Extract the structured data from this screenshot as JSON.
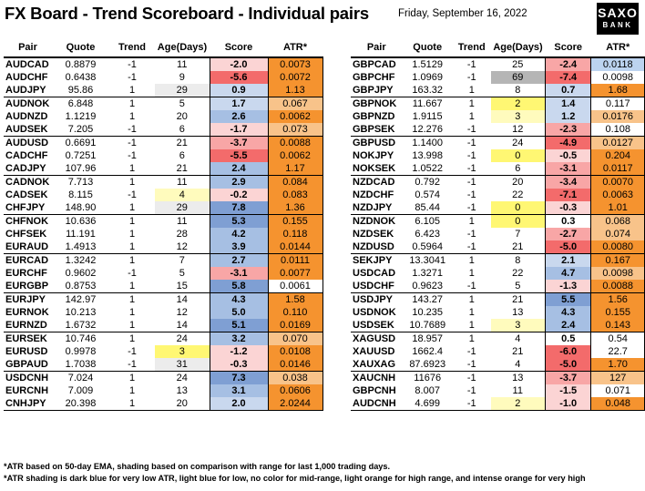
{
  "header": {
    "title": "FX Board - Trend Scoreboard - Individual pairs",
    "date": "Friday, September 16, 2022",
    "logo_line1": "SAXO",
    "logo_line2": "BANK"
  },
  "columns": [
    "Pair",
    "Quote",
    "Trend",
    "Age(Days)",
    "Score",
    "ATR*"
  ],
  "colors": {
    "score_strong_neg": "#f36b6b",
    "score_neg": "#f8a6a6",
    "score_light_neg": "#fbd4d4",
    "score_light_pos": "#c9d8ee",
    "score_pos": "#a6bfe3",
    "score_strong_pos": "#7f9fd3",
    "atr_intense_orange": "#f5932f",
    "atr_light_orange": "#f8c38a",
    "atr_light_blue": "#bcd3ef",
    "atr_dark_blue": "#5b8fd6",
    "age_yellow": "#fff773",
    "age_light_yellow": "#fffbbd",
    "age_grey": "#b5b5b5",
    "age_light_grey": "#ececec"
  },
  "left_table": [
    {
      "pair": "AUDCAD",
      "quote": "0.8879",
      "trend": "-1",
      "age": "11",
      "age_shade": "",
      "score": "-2.0",
      "score_shade": "light_neg",
      "atr": "0.0073",
      "atr_shade": "intense_orange"
    },
    {
      "pair": "AUDCHF",
      "quote": "0.6438",
      "trend": "-1",
      "age": "9",
      "age_shade": "",
      "score": "-5.6",
      "score_shade": "strong_neg",
      "atr": "0.0072",
      "atr_shade": "intense_orange"
    },
    {
      "pair": "AUDJPY",
      "quote": "95.86",
      "trend": "1",
      "age": "29",
      "age_shade": "light_grey",
      "score": "0.9",
      "score_shade": "light_pos",
      "atr": "1.13",
      "atr_shade": "intense_orange"
    },
    {
      "pair": "AUDNOK",
      "quote": "6.848",
      "trend": "1",
      "age": "5",
      "age_shade": "",
      "score": "1.7",
      "score_shade": "light_pos",
      "atr": "0.067",
      "atr_shade": "light_orange"
    },
    {
      "pair": "AUDNZD",
      "quote": "1.1219",
      "trend": "1",
      "age": "20",
      "age_shade": "",
      "score": "2.6",
      "score_shade": "pos",
      "atr": "0.0062",
      "atr_shade": "intense_orange"
    },
    {
      "pair": "AUDSEK",
      "quote": "7.205",
      "trend": "-1",
      "age": "6",
      "age_shade": "",
      "score": "-1.7",
      "score_shade": "light_neg",
      "atr": "0.073",
      "atr_shade": "light_orange"
    },
    {
      "pair": "AUDUSD",
      "quote": "0.6691",
      "trend": "-1",
      "age": "21",
      "age_shade": "",
      "score": "-3.7",
      "score_shade": "neg",
      "atr": "0.0088",
      "atr_shade": "intense_orange"
    },
    {
      "pair": "CADCHF",
      "quote": "0.7251",
      "trend": "-1",
      "age": "6",
      "age_shade": "",
      "score": "-5.5",
      "score_shade": "strong_neg",
      "atr": "0.0062",
      "atr_shade": "intense_orange"
    },
    {
      "pair": "CADJPY",
      "quote": "107.96",
      "trend": "1",
      "age": "21",
      "age_shade": "",
      "score": "2.4",
      "score_shade": "pos",
      "atr": "1.17",
      "atr_shade": "intense_orange"
    },
    {
      "pair": "CADNOK",
      "quote": "7.713",
      "trend": "1",
      "age": "11",
      "age_shade": "",
      "score": "2.9",
      "score_shade": "pos",
      "atr": "0.084",
      "atr_shade": "intense_orange"
    },
    {
      "pair": "CADSEK",
      "quote": "8.115",
      "trend": "-1",
      "age": "4",
      "age_shade": "light_yellow",
      "score": "-0.2",
      "score_shade": "light_neg",
      "atr": "0.083",
      "atr_shade": "intense_orange"
    },
    {
      "pair": "CHFJPY",
      "quote": "148.90",
      "trend": "1",
      "age": "29",
      "age_shade": "light_grey",
      "score": "7.8",
      "score_shade": "strong_pos",
      "atr": "1.36",
      "atr_shade": "intense_orange"
    },
    {
      "pair": "CHFNOK",
      "quote": "10.636",
      "trend": "1",
      "age": "11",
      "age_shade": "",
      "score": "5.3",
      "score_shade": "strong_pos",
      "atr": "0.155",
      "atr_shade": "intense_orange"
    },
    {
      "pair": "CHFSEK",
      "quote": "11.191",
      "trend": "1",
      "age": "28",
      "age_shade": "",
      "score": "4.2",
      "score_shade": "pos",
      "atr": "0.118",
      "atr_shade": "intense_orange"
    },
    {
      "pair": "EURAUD",
      "quote": "1.4913",
      "trend": "1",
      "age": "12",
      "age_shade": "",
      "score": "3.9",
      "score_shade": "pos",
      "atr": "0.0144",
      "atr_shade": "intense_orange"
    },
    {
      "pair": "EURCAD",
      "quote": "1.3242",
      "trend": "1",
      "age": "7",
      "age_shade": "",
      "score": "2.7",
      "score_shade": "pos",
      "atr": "0.0111",
      "atr_shade": "intense_orange"
    },
    {
      "pair": "EURCHF",
      "quote": "0.9602",
      "trend": "-1",
      "age": "5",
      "age_shade": "",
      "score": "-3.1",
      "score_shade": "neg",
      "atr": "0.0077",
      "atr_shade": "intense_orange"
    },
    {
      "pair": "EURGBP",
      "quote": "0.8753",
      "trend": "1",
      "age": "15",
      "age_shade": "",
      "score": "5.8",
      "score_shade": "strong_pos",
      "atr": "0.0061",
      "atr_shade": ""
    },
    {
      "pair": "EURJPY",
      "quote": "142.97",
      "trend": "1",
      "age": "14",
      "age_shade": "",
      "score": "4.3",
      "score_shade": "pos",
      "atr": "1.58",
      "atr_shade": "intense_orange"
    },
    {
      "pair": "EURNOK",
      "quote": "10.213",
      "trend": "1",
      "age": "12",
      "age_shade": "",
      "score": "5.0",
      "score_shade": "pos",
      "atr": "0.110",
      "atr_shade": "intense_orange"
    },
    {
      "pair": "EURNZD",
      "quote": "1.6732",
      "trend": "1",
      "age": "14",
      "age_shade": "",
      "score": "5.1",
      "score_shade": "strong_pos",
      "atr": "0.0169",
      "atr_shade": "intense_orange"
    },
    {
      "pair": "EURSEK",
      "quote": "10.746",
      "trend": "1",
      "age": "24",
      "age_shade": "",
      "score": "3.2",
      "score_shade": "pos",
      "atr": "0.070",
      "atr_shade": "light_orange"
    },
    {
      "pair": "EURUSD",
      "quote": "0.9978",
      "trend": "-1",
      "age": "3",
      "age_shade": "yellow",
      "score": "-1.2",
      "score_shade": "light_neg",
      "atr": "0.0108",
      "atr_shade": "intense_orange"
    },
    {
      "pair": "GBPAUD",
      "quote": "1.7038",
      "trend": "-1",
      "age": "31",
      "age_shade": "light_grey",
      "score": "-0.3",
      "score_shade": "light_neg",
      "atr": "0.0146",
      "atr_shade": "intense_orange"
    },
    {
      "pair": "USDCNH",
      "quote": "7.024",
      "trend": "1",
      "age": "24",
      "age_shade": "",
      "score": "7.3",
      "score_shade": "strong_pos",
      "atr": "0.038",
      "atr_shade": "light_orange"
    },
    {
      "pair": "EURCNH",
      "quote": "7.009",
      "trend": "1",
      "age": "13",
      "age_shade": "",
      "score": "3.1",
      "score_shade": "pos",
      "atr": "0.0606",
      "atr_shade": "intense_orange"
    },
    {
      "pair": "CNHJPY",
      "quote": "20.398",
      "trend": "1",
      "age": "20",
      "age_shade": "",
      "score": "2.0",
      "score_shade": "light_pos",
      "atr": "2.0244",
      "atr_shade": "intense_orange"
    }
  ],
  "right_table": [
    {
      "pair": "GBPCAD",
      "quote": "1.5129",
      "trend": "-1",
      "age": "25",
      "age_shade": "",
      "score": "-2.4",
      "score_shade": "neg",
      "atr": "0.0118",
      "atr_shade": "light_blue"
    },
    {
      "pair": "GBPCHF",
      "quote": "1.0969",
      "trend": "-1",
      "age": "69",
      "age_shade": "grey",
      "score": "-7.4",
      "score_shade": "strong_neg",
      "atr": "0.0098",
      "atr_shade": ""
    },
    {
      "pair": "GBPJPY",
      "quote": "163.32",
      "trend": "1",
      "age": "8",
      "age_shade": "",
      "score": "0.7",
      "score_shade": "light_pos",
      "atr": "1.68",
      "atr_shade": "intense_orange"
    },
    {
      "pair": "GBPNOK",
      "quote": "11.667",
      "trend": "1",
      "age": "2",
      "age_shade": "yellow",
      "score": "1.4",
      "score_shade": "light_pos",
      "atr": "0.117",
      "atr_shade": ""
    },
    {
      "pair": "GBPNZD",
      "quote": "1.9115",
      "trend": "1",
      "age": "3",
      "age_shade": "light_yellow",
      "score": "1.2",
      "score_shade": "light_pos",
      "atr": "0.0176",
      "atr_shade": "light_orange"
    },
    {
      "pair": "GBPSEK",
      "quote": "12.276",
      "trend": "-1",
      "age": "12",
      "age_shade": "",
      "score": "-2.3",
      "score_shade": "neg",
      "atr": "0.108",
      "atr_shade": ""
    },
    {
      "pair": "GBPUSD",
      "quote": "1.1400",
      "trend": "-1",
      "age": "24",
      "age_shade": "",
      "score": "-4.9",
      "score_shade": "strong_neg",
      "atr": "0.0127",
      "atr_shade": "light_orange"
    },
    {
      "pair": "NOKJPY",
      "quote": "13.998",
      "trend": "-1",
      "age": "0",
      "age_shade": "yellow",
      "score": "-0.5",
      "score_shade": "light_neg",
      "atr": "0.204",
      "atr_shade": "intense_orange"
    },
    {
      "pair": "NOKSEK",
      "quote": "1.0522",
      "trend": "-1",
      "age": "6",
      "age_shade": "",
      "score": "-3.1",
      "score_shade": "neg",
      "atr": "0.0117",
      "atr_shade": "intense_orange"
    },
    {
      "pair": "NZDCAD",
      "quote": "0.792",
      "trend": "-1",
      "age": "20",
      "age_shade": "",
      "score": "-3.4",
      "score_shade": "neg",
      "atr": "0.0070",
      "atr_shade": "intense_orange"
    },
    {
      "pair": "NZDCHF",
      "quote": "0.574",
      "trend": "-1",
      "age": "22",
      "age_shade": "",
      "score": "-7.1",
      "score_shade": "strong_neg",
      "atr": "0.0063",
      "atr_shade": "intense_orange"
    },
    {
      "pair": "NZDJPY",
      "quote": "85.44",
      "trend": "-1",
      "age": "0",
      "age_shade": "yellow",
      "score": "-0.3",
      "score_shade": "light_neg",
      "atr": "1.01",
      "atr_shade": "intense_orange"
    },
    {
      "pair": "NZDNOK",
      "quote": "6.105",
      "trend": "1",
      "age": "0",
      "age_shade": "yellow",
      "score": "0.3",
      "score_shade": "",
      "atr": "0.068",
      "atr_shade": "light_orange"
    },
    {
      "pair": "NZDSEK",
      "quote": "6.423",
      "trend": "-1",
      "age": "7",
      "age_shade": "",
      "score": "-2.7",
      "score_shade": "neg",
      "atr": "0.074",
      "atr_shade": "light_orange"
    },
    {
      "pair": "NZDUSD",
      "quote": "0.5964",
      "trend": "-1",
      "age": "21",
      "age_shade": "",
      "score": "-5.0",
      "score_shade": "strong_neg",
      "atr": "0.0080",
      "atr_shade": "intense_orange"
    },
    {
      "pair": "SEKJPY",
      "quote": "13.3041",
      "trend": "1",
      "age": "8",
      "age_shade": "",
      "score": "2.1",
      "score_shade": "light_pos",
      "atr": "0.167",
      "atr_shade": "intense_orange"
    },
    {
      "pair": "USDCAD",
      "quote": "1.3271",
      "trend": "1",
      "age": "22",
      "age_shade": "",
      "score": "4.7",
      "score_shade": "pos",
      "atr": "0.0098",
      "atr_shade": "light_orange"
    },
    {
      "pair": "USDCHF",
      "quote": "0.9623",
      "trend": "-1",
      "age": "5",
      "age_shade": "",
      "score": "-1.3",
      "score_shade": "light_neg",
      "atr": "0.0088",
      "atr_shade": "intense_orange"
    },
    {
      "pair": "USDJPY",
      "quote": "143.27",
      "trend": "1",
      "age": "21",
      "age_shade": "",
      "score": "5.5",
      "score_shade": "strong_pos",
      "atr": "1.56",
      "atr_shade": "intense_orange"
    },
    {
      "pair": "USDNOK",
      "quote": "10.235",
      "trend": "1",
      "age": "13",
      "age_shade": "",
      "score": "4.3",
      "score_shade": "pos",
      "atr": "0.155",
      "atr_shade": "intense_orange"
    },
    {
      "pair": "USDSEK",
      "quote": "10.7689",
      "trend": "1",
      "age": "3",
      "age_shade": "light_yellow",
      "score": "2.4",
      "score_shade": "pos",
      "atr": "0.143",
      "atr_shade": "intense_orange"
    },
    {
      "pair": "XAGUSD",
      "quote": "18.957",
      "trend": "1",
      "age": "4",
      "age_shade": "",
      "score": "0.5",
      "score_shade": "",
      "atr": "0.54",
      "atr_shade": ""
    },
    {
      "pair": "XAUUSD",
      "quote": "1662.4",
      "trend": "-1",
      "age": "21",
      "age_shade": "",
      "score": "-6.0",
      "score_shade": "strong_neg",
      "atr": "22.7",
      "atr_shade": ""
    },
    {
      "pair": "XAUXAG",
      "quote": "87.6923",
      "trend": "-1",
      "age": "4",
      "age_shade": "",
      "score": "-5.0",
      "score_shade": "strong_neg",
      "atr": "1.70",
      "atr_shade": "intense_orange"
    },
    {
      "pair": "XAUCNH",
      "quote": "11676",
      "trend": "-1",
      "age": "13",
      "age_shade": "",
      "score": "-3.7",
      "score_shade": "neg",
      "atr": "127",
      "atr_shade": "light_orange"
    },
    {
      "pair": "GBPCNH",
      "quote": "8.007",
      "trend": "-1",
      "age": "11",
      "age_shade": "",
      "score": "-1.5",
      "score_shade": "light_neg",
      "atr": "0.071",
      "atr_shade": ""
    },
    {
      "pair": "AUDCNH",
      "quote": "4.699",
      "trend": "-1",
      "age": "2",
      "age_shade": "light_yellow",
      "score": "-1.0",
      "score_shade": "light_neg",
      "atr": "0.048",
      "atr_shade": "intense_orange"
    }
  ],
  "footnotes": {
    "note1": "*ATR based on 50-day EMA, shading based on comparison with range for last 1,000 trading days.",
    "note2": "*ATR shading is dark blue for very low ATR, light blue for low, no color for mid-range, light orange for high range, and intense orange for very high"
  }
}
